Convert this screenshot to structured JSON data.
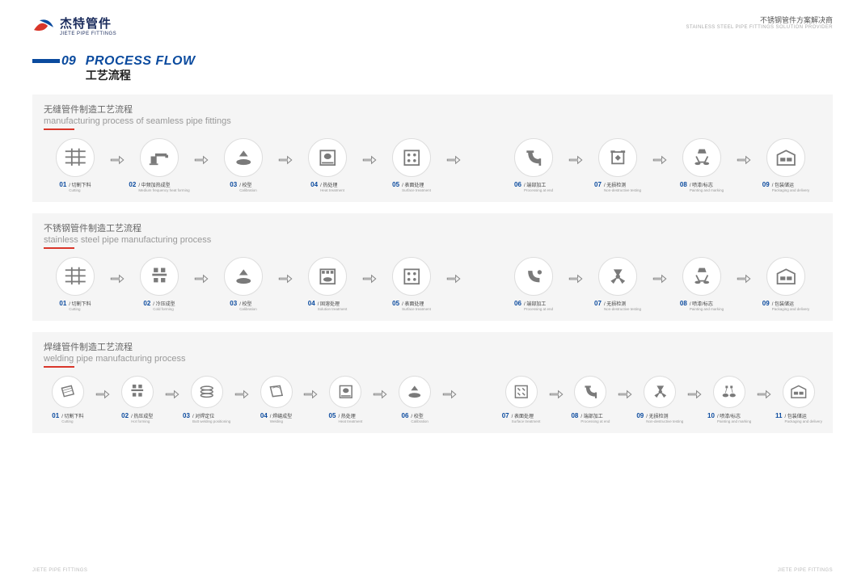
{
  "colors": {
    "brand_blue": "#0a4a9e",
    "accent_red": "#d9362a",
    "panel_bg": "#f5f5f5",
    "icon_gray": "#7a7a7a",
    "text_dark": "#222222",
    "text_mid": "#666666",
    "text_light": "#999999"
  },
  "header": {
    "logo_cn": "杰特管件",
    "logo_en": "JIETE PIPE FITTINGS",
    "right_cn": "不锈钢管件方案解决商",
    "right_en": "STAINLESS STEEL PIPE FITTINGS SOLUTION PROVIDER"
  },
  "page_title": {
    "num": "09",
    "en": "PROCESS FLOW",
    "cn": "工艺流程"
  },
  "sections": [
    {
      "head_cn": "无缝管件制造工艺流程",
      "head_en": "manufacturing process of seamless pipe fittings",
      "gap_after": 5,
      "steps": [
        {
          "num": "01",
          "cn": "切割下料",
          "en": "Cutting",
          "icon": "cut"
        },
        {
          "num": "02",
          "cn": "中频加热成型",
          "en": "Medium frequency heat forming",
          "icon": "heat"
        },
        {
          "num": "03",
          "cn": "校型",
          "en": "Calibration",
          "icon": "calib"
        },
        {
          "num": "04",
          "cn": "热处理",
          "en": "Heat treatment",
          "icon": "furnace"
        },
        {
          "num": "05",
          "cn": "表面处理",
          "en": "Surface treatment",
          "icon": "surface"
        },
        {
          "num": "06",
          "cn": "端部加工",
          "en": "Processing at end",
          "icon": "elbow"
        },
        {
          "num": "07",
          "cn": "无损检测",
          "en": "Non-destructive testing",
          "icon": "ndt"
        },
        {
          "num": "08",
          "cn": "喷漆/标志",
          "en": "Painting and marking",
          "icon": "paint"
        },
        {
          "num": "09",
          "cn": "包装储运",
          "en": "Packaging and delivery",
          "icon": "pack"
        }
      ]
    },
    {
      "head_cn": "不锈钢管件制造工艺流程",
      "head_en": "stainless steel pipe manufacturing process",
      "gap_after": 5,
      "steps": [
        {
          "num": "01",
          "cn": "切割下料",
          "en": "Cutting",
          "icon": "cut"
        },
        {
          "num": "02",
          "cn": "冷压成型",
          "en": "Cold forming",
          "icon": "press"
        },
        {
          "num": "03",
          "cn": "校型",
          "en": "Calibration",
          "icon": "calib"
        },
        {
          "num": "04",
          "cn": "固溶处理",
          "en": "Solution treatment",
          "icon": "furnace2"
        },
        {
          "num": "05",
          "cn": "表面处理",
          "en": "Surface treatment",
          "icon": "surface"
        },
        {
          "num": "06",
          "cn": "端部加工",
          "en": "Processing at end",
          "icon": "elbow2"
        },
        {
          "num": "07",
          "cn": "无损检测",
          "en": "Non-destructive testing",
          "icon": "fan"
        },
        {
          "num": "08",
          "cn": "喷漆/标志",
          "en": "Painting and marking",
          "icon": "paint"
        },
        {
          "num": "09",
          "cn": "包装储运",
          "en": "Packaging and delivery",
          "icon": "pack"
        }
      ]
    },
    {
      "head_cn": "焊缝管件制造工艺流程",
      "head_en": "welding pipe manufacturing process",
      "gap_after": 6,
      "wide": true,
      "steps": [
        {
          "num": "01",
          "cn": "切割下料",
          "en": "Cutting",
          "icon": "sheet"
        },
        {
          "num": "02",
          "cn": "热压成型",
          "en": "Hot forming",
          "icon": "press"
        },
        {
          "num": "03",
          "cn": "对焊定位",
          "en": "Butt welding positioning",
          "icon": "weldpos"
        },
        {
          "num": "04",
          "cn": "焊缝成型",
          "en": "Welding",
          "icon": "weldsheet"
        },
        {
          "num": "05",
          "cn": "热处理",
          "en": "Heat treatment",
          "icon": "furnace"
        },
        {
          "num": "06",
          "cn": "校型",
          "en": "Calibration",
          "icon": "calib"
        },
        {
          "num": "07",
          "cn": "表面处理",
          "en": "Surface treatment",
          "icon": "surface2"
        },
        {
          "num": "08",
          "cn": "端部加工",
          "en": "Processing at end",
          "icon": "elbow"
        },
        {
          "num": "09",
          "cn": "无损检测",
          "en": "Non-destructive testing",
          "icon": "fan"
        },
        {
          "num": "10",
          "cn": "喷漆/标志",
          "en": "Painting and marking",
          "icon": "paint2"
        },
        {
          "num": "11",
          "cn": "包装储运",
          "en": "Packaging and delivery",
          "icon": "pack"
        }
      ]
    }
  ],
  "footer": {
    "left": "JIETE PIPE FITTINGS",
    "right": "JIETE PIPE FITTINGS"
  }
}
